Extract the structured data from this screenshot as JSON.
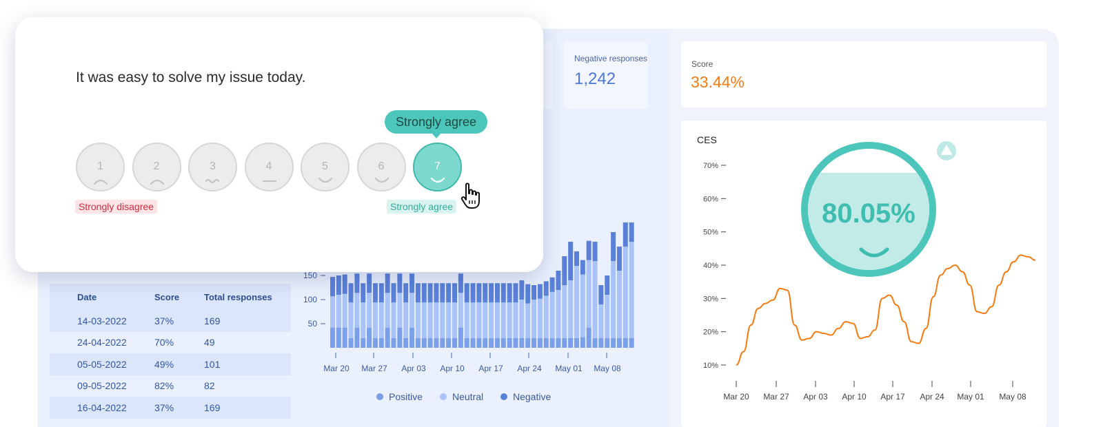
{
  "survey": {
    "question": "It was easy to solve my issue today.",
    "options": [
      "1",
      "2",
      "3",
      "4",
      "5",
      "6",
      "7"
    ],
    "selected": "7",
    "tooltip": "Strongly agree",
    "label_low": "Strongly disagree",
    "label_high": "Strongly agree"
  },
  "stats": {
    "negative_label": "Negative responses",
    "negative_value": "1,242"
  },
  "table": {
    "headers": [
      "Date",
      "Score",
      "Total responses"
    ],
    "rows": [
      [
        "14-03-2022",
        "37%",
        "169"
      ],
      [
        "24-04-2022",
        "70%",
        "49"
      ],
      [
        "05-05-2022",
        "49%",
        "101"
      ],
      [
        "09-05-2022",
        "82%",
        "82"
      ],
      [
        "16-04-2022",
        "37%",
        "169"
      ]
    ]
  },
  "score_card": {
    "label": "Score",
    "value": "33.44%"
  },
  "ces_card": {
    "title": "CES",
    "gauge_value": "80.05%",
    "gauge_level": 0.8
  },
  "colors": {
    "positive": "#7b9fe8",
    "neutral": "#a9c3f6",
    "negative": "#5a80d8",
    "accent_teal": "#4cc6ba",
    "score_orange": "#f47a12",
    "line_orange": "#f47a12"
  },
  "chart_data": [
    {
      "type": "bar",
      "stacked": true,
      "x_tick_labels": [
        "Mar 20",
        "Mar 27",
        "Apr 03",
        "Apr 10",
        "Apr 17",
        "Apr 24",
        "May 01",
        "May 08"
      ],
      "y_ticks": [
        50,
        100,
        150
      ],
      "legend": [
        "Positive",
        "Neutral",
        "Negative"
      ],
      "legend_placement": "bottom",
      "series": [
        {
          "name": "Positive",
          "values": [
            42,
            42,
            42,
            20,
            42,
            20,
            42,
            20,
            20,
            42,
            20,
            42,
            20,
            42,
            20,
            20,
            20,
            20,
            20,
            20,
            20,
            42,
            20,
            20,
            20,
            20,
            20,
            20,
            20,
            20,
            20,
            20,
            20,
            20,
            20,
            20,
            20,
            20,
            20,
            20,
            20,
            22,
            42,
            20,
            20,
            20,
            20,
            20,
            20,
            20
          ]
        },
        {
          "name": "Neutral",
          "values": [
            65,
            68,
            70,
            74,
            72,
            74,
            72,
            74,
            74,
            72,
            74,
            72,
            74,
            72,
            74,
            74,
            74,
            74,
            74,
            74,
            74,
            72,
            74,
            74,
            74,
            74,
            74,
            74,
            74,
            74,
            74,
            80,
            72,
            80,
            82,
            88,
            96,
            100,
            110,
            120,
            150,
            130,
            140,
            160,
            70,
            90,
            160,
            140,
            190,
            200
          ]
        },
        {
          "name": "Negative",
          "values": [
            40,
            40,
            40,
            40,
            40,
            40,
            40,
            40,
            40,
            40,
            40,
            40,
            40,
            40,
            40,
            40,
            40,
            40,
            40,
            40,
            40,
            40,
            40,
            40,
            40,
            40,
            40,
            40,
            40,
            40,
            40,
            40,
            40,
            30,
            30,
            30,
            30,
            40,
            60,
            80,
            30,
            30,
            40,
            40,
            40,
            40,
            60,
            50,
            50,
            40
          ]
        }
      ],
      "ylim": [
        0,
        300
      ]
    },
    {
      "type": "line",
      "title": "CES",
      "x_tick_labels": [
        "Mar 20",
        "Mar 27",
        "Apr 03",
        "Apr 10",
        "Apr 17",
        "Apr 24",
        "May 01",
        "May 08"
      ],
      "y_tick_labels": [
        "10%",
        "20%",
        "30%",
        "40%",
        "50%",
        "60%",
        "70%"
      ],
      "ylim": [
        10,
        70
      ],
      "series": [
        {
          "values": [
            10,
            14,
            22,
            27,
            28.5,
            29.5,
            33,
            32.5,
            22,
            17.5,
            18,
            20,
            19.5,
            19,
            21,
            23,
            22.5,
            18,
            18.5,
            20.5,
            30,
            31,
            28,
            23,
            17,
            16.5,
            21,
            30.5,
            37,
            39,
            40,
            38,
            34,
            26,
            25.5,
            27.5,
            34,
            38,
            41,
            43,
            42.5,
            41.5
          ]
        }
      ]
    }
  ]
}
